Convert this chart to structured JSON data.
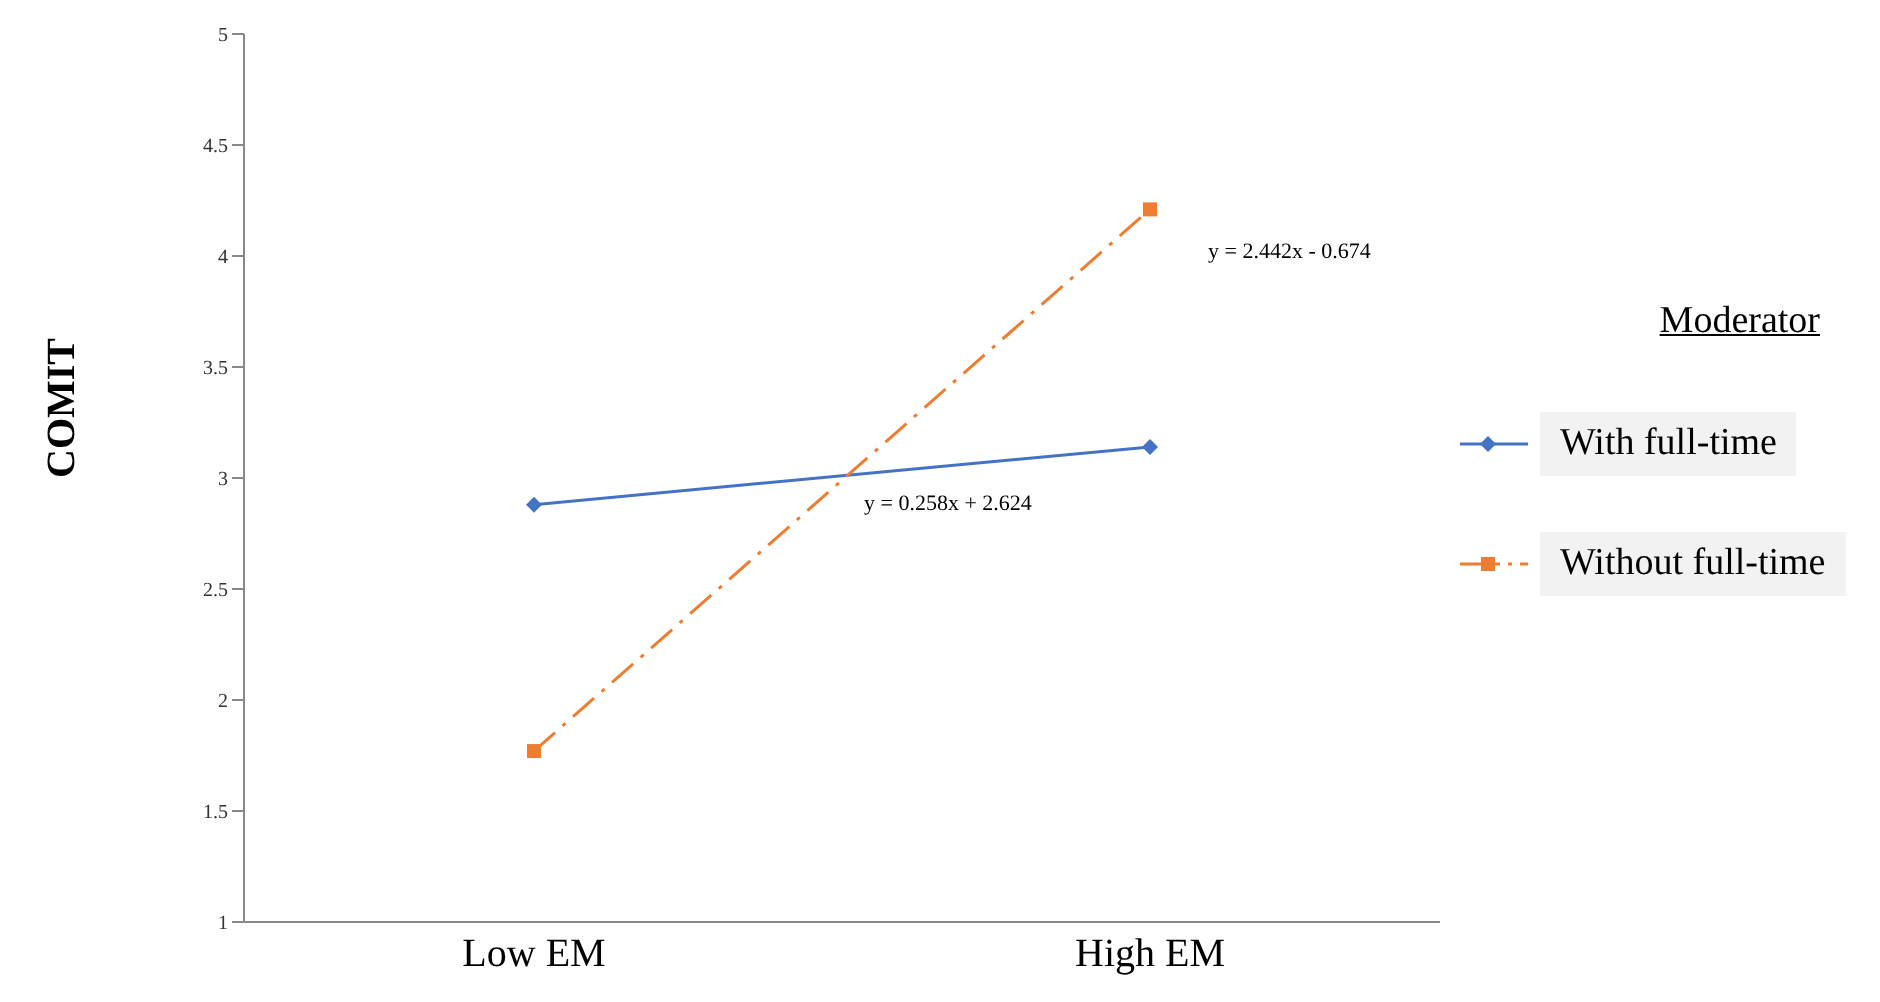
{
  "chart_data": {
    "type": "line",
    "ylabel": "COMIT",
    "categories": [
      "Low EM",
      "High EM"
    ],
    "series": [
      {
        "name": "With full-time",
        "color": "#4472c4",
        "values": [
          2.88,
          3.14
        ],
        "marker": "diamond",
        "line_style": "solid"
      },
      {
        "name": "Without full-time",
        "color": "#ed7d31",
        "values": [
          1.77,
          4.21
        ],
        "marker": "square",
        "line_style": "dashed"
      }
    ],
    "ylim": [
      1,
      5
    ],
    "yticks": [
      1,
      1.5,
      2,
      2.5,
      3,
      3.5,
      4,
      4.5,
      5
    ],
    "grid": false,
    "legend": "right",
    "legend_title": "Moderator",
    "annotations": [
      "y = 2.442x - 0.674",
      "y = 0.258x + 2.624"
    ]
  }
}
